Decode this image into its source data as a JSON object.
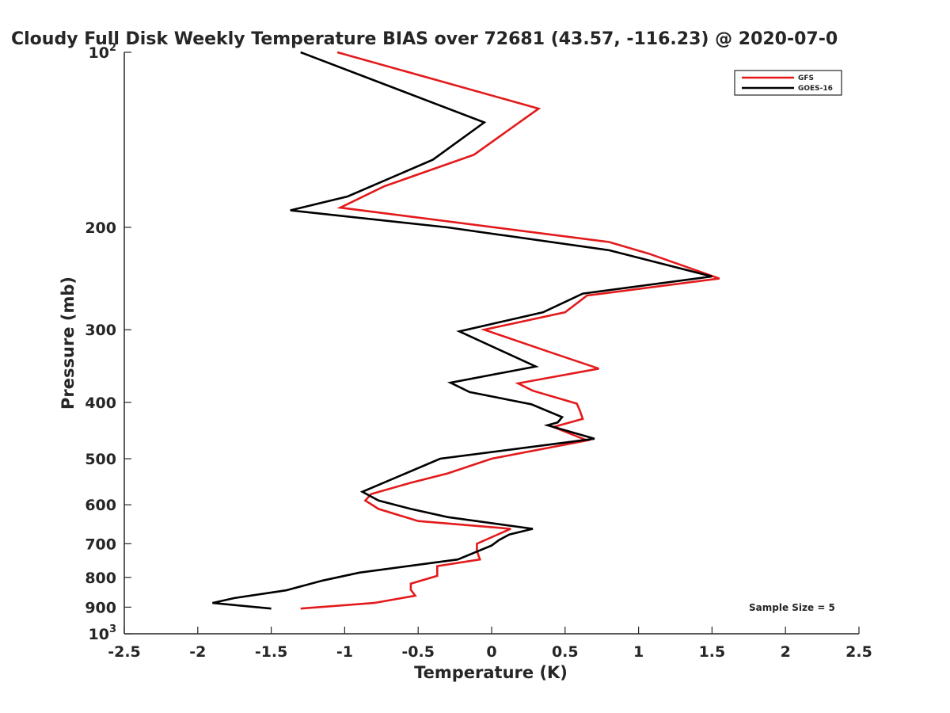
{
  "chart_data": {
    "type": "line",
    "title": "Cloudy Full Disk Weekly Temperature BIAS over 72681 (43.57, -116.23) @ 2020-07-0",
    "xlabel": "Temperature (K)",
    "ylabel": "Pressure (mb)",
    "xlim": [
      -2.5,
      2.5
    ],
    "ylim": [
      100,
      1000
    ],
    "y_scale": "log",
    "y_reversed": true,
    "grid": false,
    "legend_position": "top-right",
    "x_ticks": [
      -2.5,
      -2,
      -1.5,
      -1,
      -0.5,
      0,
      0.5,
      1,
      1.5,
      2,
      2.5
    ],
    "x_tick_labels": [
      "-2.5",
      "-2",
      "-1.5",
      "-1",
      "-0.5",
      "0",
      "0.5",
      "1",
      "1.5",
      "2",
      "2.5"
    ],
    "y_ticks": [
      {
        "value": 100,
        "base": "10",
        "exp": "2"
      },
      {
        "value": 200,
        "label": "200"
      },
      {
        "value": 300,
        "label": "300"
      },
      {
        "value": 400,
        "label": "400"
      },
      {
        "value": 500,
        "label": "500"
      },
      {
        "value": 600,
        "label": "600"
      },
      {
        "value": 700,
        "label": "700"
      },
      {
        "value": 800,
        "label": "800"
      },
      {
        "value": 900,
        "label": "900"
      },
      {
        "value": 1000,
        "base": "10",
        "exp": "3"
      }
    ],
    "annotation": "Sample Size = 5",
    "series": [
      {
        "name": "GFS",
        "color": "#e31a1c",
        "points": [
          [
            -1.05,
            100
          ],
          [
            0.32,
            125
          ],
          [
            -0.12,
            150
          ],
          [
            -0.73,
            170
          ],
          [
            -1.03,
            185
          ],
          [
            0.8,
            212
          ],
          [
            1.07,
            222
          ],
          [
            1.55,
            245
          ],
          [
            0.65,
            262
          ],
          [
            0.5,
            280
          ],
          [
            -0.05,
            300
          ],
          [
            0.4,
            328
          ],
          [
            0.73,
            350
          ],
          [
            0.18,
            371
          ],
          [
            0.28,
            382
          ],
          [
            0.58,
            402
          ],
          [
            0.6,
            413
          ],
          [
            0.62,
            427
          ],
          [
            0.42,
            441
          ],
          [
            0.65,
            465
          ],
          [
            0.0,
            500
          ],
          [
            -0.3,
            530
          ],
          [
            -0.55,
            550
          ],
          [
            -0.82,
            575
          ],
          [
            -0.86,
            590
          ],
          [
            -0.77,
            610
          ],
          [
            -0.5,
            640
          ],
          [
            0.13,
            660
          ],
          [
            -0.1,
            700
          ],
          [
            -0.1,
            720
          ],
          [
            -0.08,
            745
          ],
          [
            -0.37,
            765
          ],
          [
            -0.37,
            795
          ],
          [
            -0.55,
            820
          ],
          [
            -0.55,
            840
          ],
          [
            -0.52,
            860
          ],
          [
            -0.8,
            885
          ],
          [
            -1.3,
            905
          ]
        ]
      },
      {
        "name": "GOES-16",
        "color": "#000000",
        "points": [
          [
            -1.3,
            100
          ],
          [
            -0.05,
            132
          ],
          [
            -0.4,
            153
          ],
          [
            -0.98,
            177
          ],
          [
            -1.37,
            187
          ],
          [
            -0.3,
            200
          ],
          [
            0.8,
            219
          ],
          [
            1.5,
            243
          ],
          [
            0.62,
            260
          ],
          [
            0.35,
            280
          ],
          [
            -0.22,
            302
          ],
          [
            0.3,
            347
          ],
          [
            -0.28,
            370
          ],
          [
            -0.15,
            384
          ],
          [
            0.27,
            403
          ],
          [
            0.48,
            424
          ],
          [
            0.45,
            433
          ],
          [
            0.38,
            438
          ],
          [
            0.7,
            462
          ],
          [
            -0.35,
            500
          ],
          [
            -0.88,
            570
          ],
          [
            -0.77,
            590
          ],
          [
            -0.55,
            610
          ],
          [
            -0.3,
            630
          ],
          [
            0.28,
            660
          ],
          [
            0.12,
            675
          ],
          [
            0.05,
            690
          ],
          [
            0.0,
            705
          ],
          [
            -0.23,
            745
          ],
          [
            -0.9,
            785
          ],
          [
            -1.15,
            810
          ],
          [
            -1.4,
            842
          ],
          [
            -1.75,
            868
          ],
          [
            -1.9,
            885
          ],
          [
            -1.5,
            905
          ]
        ]
      }
    ]
  }
}
